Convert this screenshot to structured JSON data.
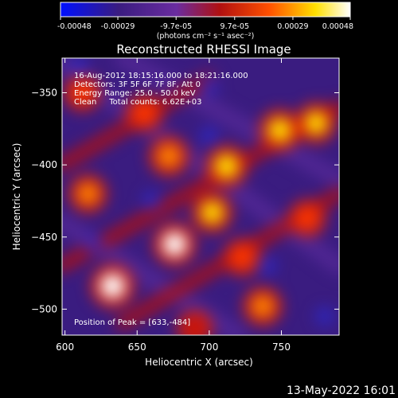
{
  "chart_data": {
    "type": "heatmap",
    "title": "Reconstructed RHESSI Image",
    "xlabel": "Heliocentric X (arcsec)",
    "ylabel": "Heliocentric Y (arcsec)",
    "xlim": [
      598,
      790
    ],
    "ylim": [
      -518,
      -326
    ],
    "x_ticks": [
      600,
      650,
      700,
      750
    ],
    "y_ticks": [
      -500,
      -450,
      -400,
      -350
    ],
    "colorbar": {
      "range": [
        -0.00048,
        0.00048
      ],
      "ticks": [
        {
          "value": -0.00048,
          "label": "-0.00048"
        },
        {
          "value": -0.00029,
          "label": "-0.00029"
        },
        {
          "value": -9.7e-05,
          "label": "-9.7e-05"
        },
        {
          "value": 9.7e-05,
          "label": "9.7e-05"
        },
        {
          "value": 0.00029,
          "label": "0.00029"
        },
        {
          "value": 0.00048,
          "label": "0.00048"
        }
      ],
      "unit_label": "(photons cm⁻² s⁻¹ asec⁻²)",
      "colors": [
        "#0010ff",
        "#3a1c80",
        "#6a2ca0",
        "#b01010",
        "#ff5000",
        "#ffe000",
        "#ffffff"
      ]
    },
    "info_lines": [
      "16-Aug-2012 18:15:16.000 to 18:21:16.000",
      "Detectors: 3F 5F 6F 7F 8F, Att 0",
      "Energy Range: 25.0 - 50.0 keV",
      "Clean     Total counts: 6.62E+03"
    ],
    "peak_label": "Position of Peak = [633,-484]",
    "peak": [
      633,
      -484
    ],
    "bright_sources": [
      {
        "x": 633,
        "y": -484,
        "value": 0.00048
      },
      {
        "x": 676,
        "y": -455,
        "value": 0.00044
      },
      {
        "x": 712,
        "y": -401,
        "value": 0.0004
      },
      {
        "x": 749,
        "y": -376,
        "value": 0.00038
      },
      {
        "x": 702,
        "y": -433,
        "value": 0.00034
      },
      {
        "x": 774,
        "y": -371,
        "value": 0.00033
      },
      {
        "x": 672,
        "y": -394,
        "value": 0.0003
      },
      {
        "x": 737,
        "y": -498,
        "value": 0.00026
      },
      {
        "x": 616,
        "y": -420,
        "value": 0.00022
      },
      {
        "x": 723,
        "y": -464,
        "value": 0.0002
      },
      {
        "x": 655,
        "y": -364,
        "value": 0.00018
      },
      {
        "x": 768,
        "y": -437,
        "value": 0.00018
      },
      {
        "x": 612,
        "y": -350,
        "value": 0.00015
      },
      {
        "x": 690,
        "y": -513,
        "value": 0.00012
      }
    ]
  },
  "footer": {
    "timestamp": "13-May-2022 16:01"
  }
}
